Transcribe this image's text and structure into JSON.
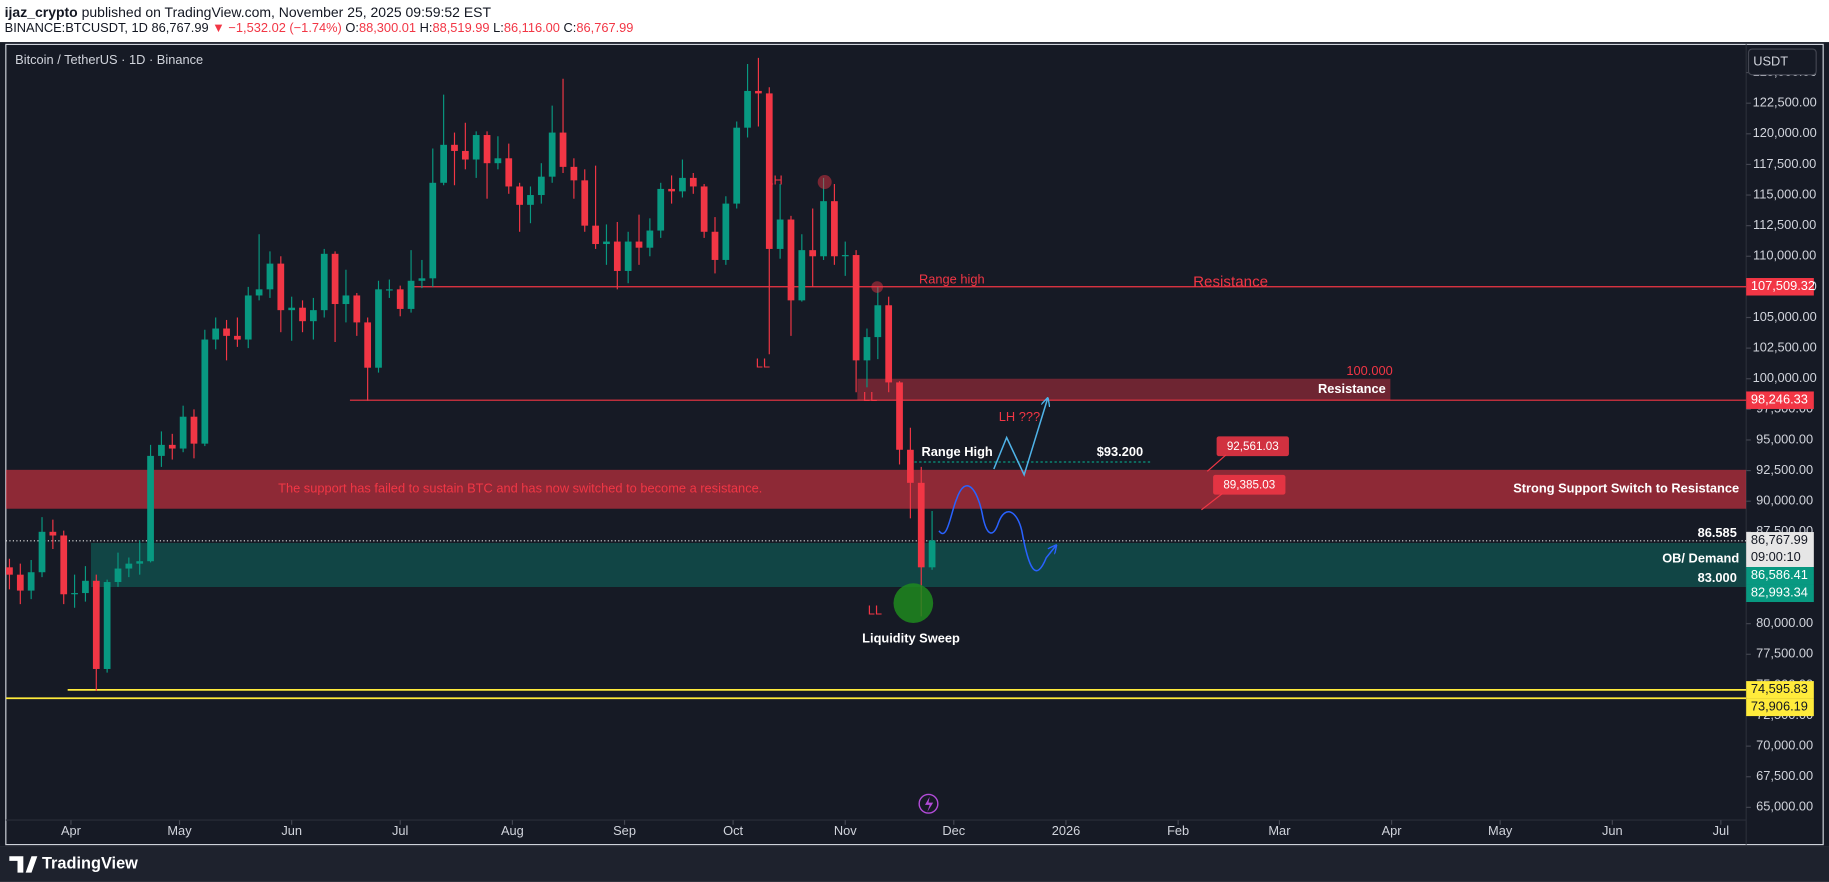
{
  "header": {
    "author": "ijaz_crypto",
    "published": "published on TradingView.com, November 25, 2025 09:59:52 EST",
    "symbol": "BINANCE:BTCUSDT, 1D",
    "last": "86,767.99",
    "change": "▼ −1,532.02 (−1.74%)",
    "ohlc": [
      {
        "key": "O:",
        "value": "88,300.01"
      },
      {
        "key": "H:",
        "value": "88,519.99"
      },
      {
        "key": "L:",
        "value": "86,116.00"
      },
      {
        "key": "C:",
        "value": "86,767.99"
      }
    ]
  },
  "currency": "USDT",
  "brand": "TradingView",
  "chart_data": {
    "type": "candlestick",
    "title": "Bitcoin / TetherUS · 1D · Binance",
    "up_color": "#089981",
    "down_color": "#f23645",
    "grid": false,
    "x": [
      0,
      3,
      6,
      9,
      12,
      15,
      18,
      21,
      24,
      27,
      30,
      33,
      36,
      39,
      42,
      45,
      48,
      51,
      54,
      57,
      60,
      63,
      66,
      69,
      72,
      75,
      78,
      81,
      84,
      87,
      90,
      93,
      96,
      99,
      102,
      105,
      108,
      111,
      114,
      117,
      120,
      123,
      126,
      129,
      132,
      135,
      138,
      141,
      144,
      147,
      150,
      153,
      156,
      159,
      162,
      165,
      168,
      171,
      174,
      177,
      180,
      183,
      186,
      189,
      192,
      195,
      198,
      201,
      204,
      207,
      210,
      213,
      216,
      219,
      222,
      225,
      228,
      231,
      234,
      237,
      240,
      243,
      246,
      249,
      252,
      255
    ],
    "open": [
      84600,
      84000,
      82700,
      84200,
      87500,
      87200,
      82400,
      82500,
      83500,
      76300,
      83400,
      84500,
      84900,
      85100,
      93700,
      94600,
      94300,
      96900,
      94700,
      103200,
      104100,
      103500,
      103200,
      106800,
      107300,
      109400,
      105600,
      105800,
      104700,
      105600,
      110200,
      106100,
      106800,
      104600,
      100900,
      107300,
      107300,
      105700,
      108000,
      108200,
      116000,
      119100,
      118600,
      117900,
      119900,
      117600,
      118000,
      115700,
      114200,
      115000,
      116500,
      120100,
      117300,
      116200,
      112500,
      111000,
      111200,
      108800,
      111200,
      110700,
      112100,
      115500,
      115300,
      116400,
      115700,
      112000,
      109700,
      114300,
      120500,
      123500,
      123300,
      110600,
      113000,
      106400,
      110500,
      110000,
      114500,
      110000,
      110100,
      101500,
      103400,
      106000,
      99700,
      94200,
      91500,
      84600
    ],
    "high": [
      85300,
      84900,
      85200,
      88700,
      88500,
      87600,
      84000,
      84700,
      84000,
      83600,
      85800,
      85400,
      86800,
      94600,
      95700,
      95500,
      97800,
      97500,
      104000,
      105000,
      104800,
      105000,
      107500,
      111800,
      110400,
      110000,
      106700,
      106400,
      106600,
      110600,
      110400,
      108900,
      107000,
      105000,
      108000,
      108100,
      107600,
      110500,
      109700,
      118800,
      123200,
      120100,
      120900,
      120200,
      120200,
      119800,
      119200,
      116000,
      115700,
      117600,
      122300,
      124500,
      118000,
      117100,
      117400,
      112600,
      112800,
      112000,
      113400,
      113100,
      116000,
      116600,
      117900,
      116800,
      115900,
      113200,
      114900,
      121000,
      125700,
      126200,
      123800,
      115900,
      113300,
      111800,
      113900,
      116400,
      115900,
      111200,
      110500,
      104100,
      107500,
      106700,
      99800,
      96000,
      92800,
      89200
    ],
    "low": [
      82800,
      81600,
      82000,
      83800,
      86100,
      81600,
      81300,
      81800,
      74500,
      76000,
      83000,
      83800,
      84000,
      85000,
      92800,
      93400,
      94000,
      93500,
      94500,
      102400,
      101500,
      102600,
      102500,
      106400,
      106600,
      103800,
      103100,
      103800,
      103200,
      105000,
      103000,
      104600,
      103500,
      98200,
      100500,
      106600,
      105100,
      105400,
      107400,
      107500,
      115800,
      115800,
      117100,
      116400,
      114700,
      117100,
      115100,
      112000,
      112700,
      114300,
      116000,
      116800,
      114700,
      112000,
      110600,
      109300,
      107300,
      107800,
      109300,
      110000,
      111500,
      114300,
      114800,
      115100,
      111500,
      108600,
      109300,
      113900,
      119700,
      120600,
      102000,
      109800,
      103500,
      106300,
      107500,
      109700,
      109300,
      108400,
      98900,
      99300,
      101600,
      98900,
      93000,
      88600,
      80600,
      84400
    ],
    "close": [
      84000,
      82700,
      84200,
      87500,
      87200,
      82400,
      82500,
      83500,
      76300,
      83400,
      84500,
      84900,
      85100,
      93700,
      94600,
      94300,
      96900,
      94700,
      103200,
      104100,
      103500,
      103200,
      106800,
      107300,
      109400,
      105600,
      105800,
      104700,
      105600,
      110200,
      106100,
      106800,
      104600,
      100900,
      107300,
      107300,
      105700,
      108000,
      108200,
      116000,
      119100,
      118600,
      117900,
      119900,
      117600,
      118000,
      115700,
      114200,
      115000,
      116500,
      120100,
      117300,
      116200,
      112500,
      111000,
      111200,
      108800,
      111200,
      110700,
      112100,
      115500,
      115300,
      116400,
      115700,
      112000,
      109700,
      114300,
      120500,
      123500,
      123300,
      110600,
      113000,
      106400,
      110500,
      110000,
      114500,
      110000,
      110100,
      101500,
      103400,
      106000,
      99700,
      94200,
      91500,
      84600,
      86800
    ],
    "xlim": [
      -1,
      480
    ],
    "xticks": [
      {
        "value": 17,
        "label": "Apr"
      },
      {
        "value": 47,
        "label": "May"
      },
      {
        "value": 78,
        "label": "Jun"
      },
      {
        "value": 108,
        "label": "Jul"
      },
      {
        "value": 139,
        "label": "Aug"
      },
      {
        "value": 170,
        "label": "Sep"
      },
      {
        "value": 200,
        "label": "Oct"
      },
      {
        "value": 231,
        "label": "Nov"
      },
      {
        "value": 261,
        "label": "Dec"
      },
      {
        "value": 292,
        "label": "2026"
      },
      {
        "value": 323,
        "label": "Feb"
      },
      {
        "value": 351,
        "label": "Mar"
      },
      {
        "value": 382,
        "label": "Apr"
      },
      {
        "value": 412,
        "label": "May"
      },
      {
        "value": 443,
        "label": "Jun"
      },
      {
        "value": 473,
        "label": "Jul"
      }
    ],
    "ylim": [
      62150,
      127300
    ],
    "yticks": [
      {
        "value": 65000,
        "label": "65,000.00"
      },
      {
        "value": 67500,
        "label": "67,500.00"
      },
      {
        "value": 70000,
        "label": "70,000.00"
      },
      {
        "value": 72500,
        "label": "72,500.00"
      },
      {
        "value": 75000,
        "label": "75,000.00"
      },
      {
        "value": 77500,
        "label": "77,500.00"
      },
      {
        "value": 80000,
        "label": "80,000.00"
      },
      {
        "value": 82500,
        "label": "82,500.00"
      },
      {
        "value": 85000,
        "label": "85,000.00"
      },
      {
        "value": 87500,
        "label": "87,500.00"
      },
      {
        "value": 90000,
        "label": "90,000.00"
      },
      {
        "value": 92500,
        "label": "92,500.00"
      },
      {
        "value": 95000,
        "label": "95,000.00"
      },
      {
        "value": 97500,
        "label": "97,500.00"
      },
      {
        "value": 100000,
        "label": "100,000.00"
      },
      {
        "value": 102500,
        "label": "102,500.00"
      },
      {
        "value": 105000,
        "label": "105,000.00"
      },
      {
        "value": 107500,
        "label": "107,500.00"
      },
      {
        "value": 110000,
        "label": "110,000.00"
      },
      {
        "value": 112500,
        "label": "112,500.00"
      },
      {
        "value": 115000,
        "label": "115,000.00"
      },
      {
        "value": 117500,
        "label": "117,500.00"
      },
      {
        "value": 120000,
        "label": "120,000.00"
      },
      {
        "value": 122500,
        "label": "122,500.00"
      },
      {
        "value": 125000,
        "label": "125,000.00"
      }
    ],
    "levels": [
      {
        "value": 107509.32,
        "label": "107,509.32",
        "color": "#f23645",
        "text_color": "#ffffff"
      },
      {
        "value": 98246.33,
        "label": "98,246.33",
        "color": "#f23645",
        "text_color": "#ffffff"
      },
      {
        "value": 86767.99,
        "label": "86,767.99",
        "color": "#e6e6e6",
        "text_color": "#131722",
        "countdown": "09:00:10"
      },
      {
        "value": 74595.83,
        "label": "74,595.83",
        "color": "#ffeb3b",
        "text_color": "#131722"
      },
      {
        "value": 73906.19,
        "label": "73,906.19",
        "color": "#ffeb3b",
        "text_color": "#131722"
      }
    ],
    "zones": [
      {
        "top": 100000,
        "top_label": "100.000",
        "bottom": 98246.33,
        "text": "Resistance",
        "color": "#f23645"
      },
      {
        "top": 92561.03,
        "top_label": "92,561.03",
        "bottom": 89385.03,
        "bottom_label": "89,385.03",
        "text": "The support has failed to sustain BTC and has now switched to become a resistance.",
        "side_text": "Strong Support Switch to Resistance",
        "color": "#f23645"
      },
      {
        "top": 86586.41,
        "top_label": "86,586.41",
        "bottom": 82993.34,
        "bottom_label": "82,993.34",
        "text": "OB/ Demand",
        "color": "#089981"
      }
    ],
    "demand_notes": [
      {
        "value": 86585,
        "label": "86.585"
      },
      {
        "value": 83000,
        "label": "83.000"
      }
    ],
    "range_high": {
      "name": "Range High",
      "value": 93200,
      "label": "$93.200"
    },
    "annotations": [
      "Range high",
      "Resistance",
      "LH",
      "LL",
      "LL",
      "LL",
      "LH ???",
      "Liquidity Sweep"
    ]
  }
}
